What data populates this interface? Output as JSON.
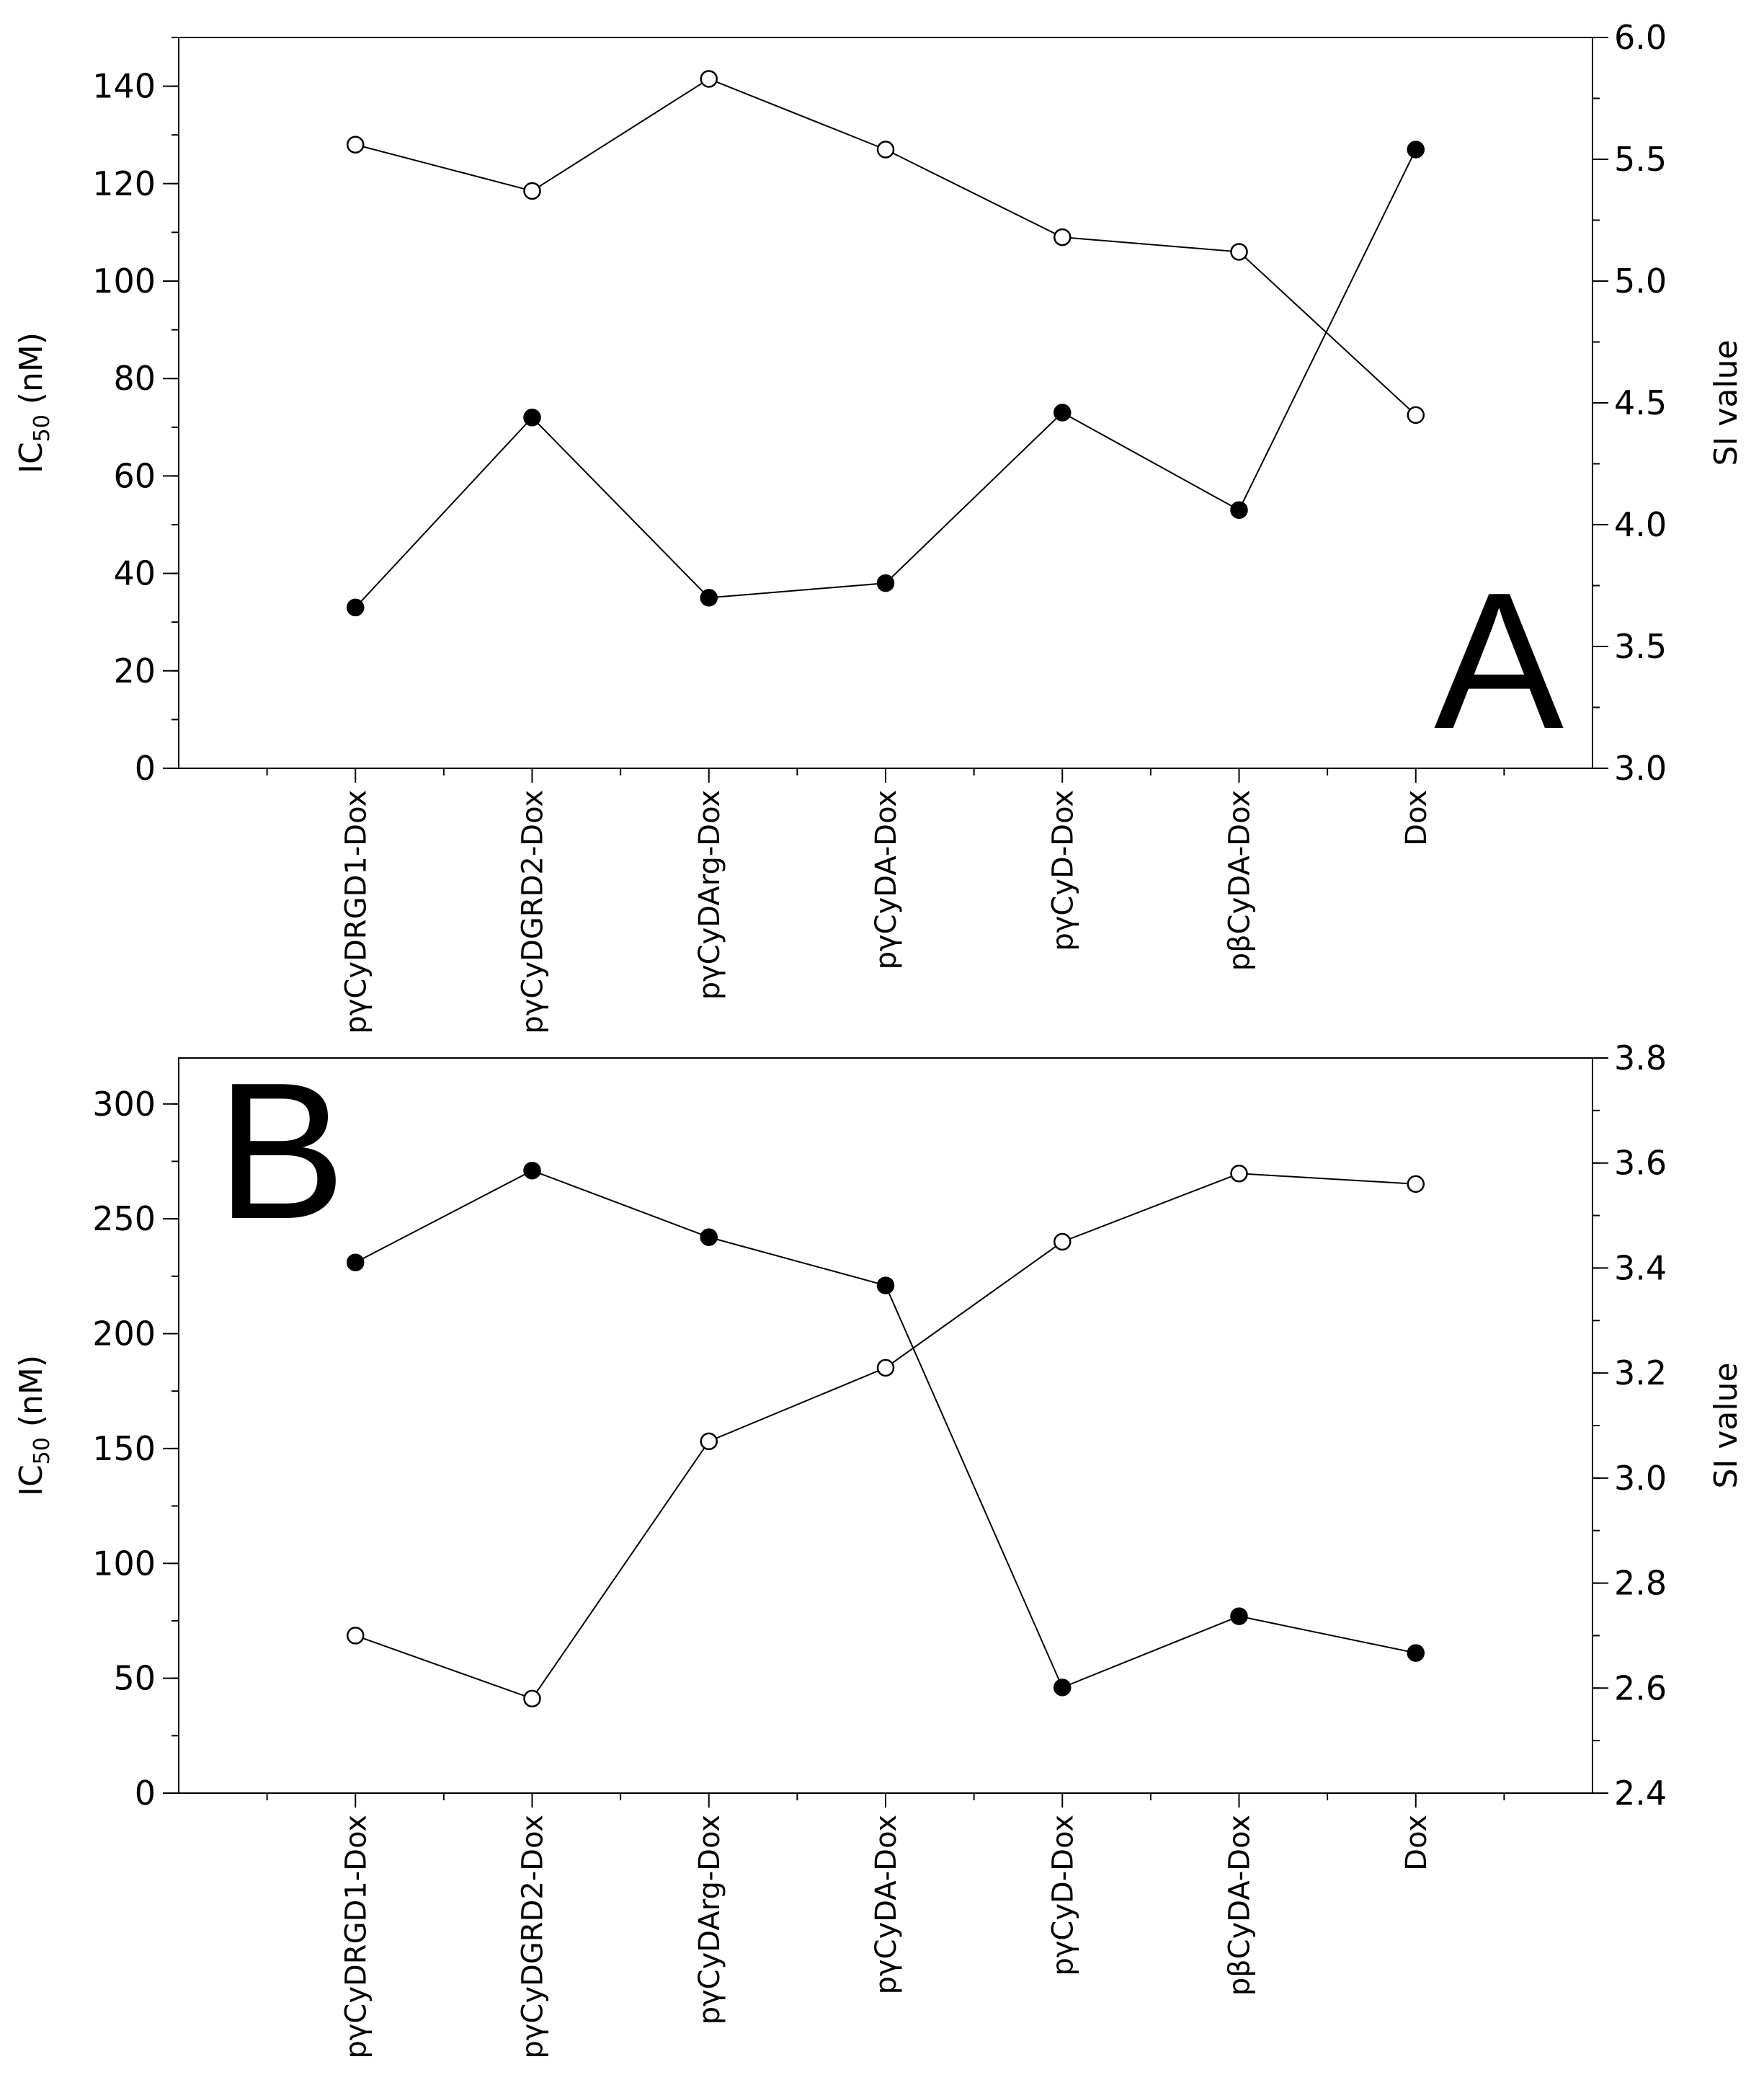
{
  "chart_data": [
    {
      "type": "line",
      "panel_label": "A",
      "categories": [
        "pγCyDRGD1-Dox",
        "pγCyDGRD2-Dox",
        "pγCyDArg-Dox",
        "pγCyDA-Dox",
        "pγCyD-Dox",
        "pβCyDA-Dox",
        "Dox"
      ],
      "y_left": {
        "label": "IC",
        "label_sub": "50",
        "label_unit": " (nM)",
        "ylim": [
          0,
          150
        ],
        "ticks": [
          0,
          20,
          40,
          60,
          80,
          100,
          120,
          140
        ],
        "minor_step": 10
      },
      "y_right": {
        "label": "SI value",
        "ylim": [
          3.0,
          6.0
        ],
        "ticks": [
          "3.0",
          "3.5",
          "4.0",
          "4.5",
          "5.0",
          "5.5",
          "6.0"
        ],
        "minor_step": 0.25
      },
      "series": [
        {
          "name": "IC50 (filled)",
          "axis": "left",
          "marker": "filled",
          "values": [
            33,
            72,
            35,
            38,
            73,
            53,
            127
          ]
        },
        {
          "name": "SI value (open)",
          "axis": "right",
          "marker": "open",
          "values": [
            5.56,
            5.37,
            5.83,
            5.54,
            5.18,
            5.12,
            4.45
          ]
        }
      ]
    },
    {
      "type": "line",
      "panel_label": "B",
      "categories": [
        "pγCyDRGD1-Dox",
        "pγCyDGRD2-Dox",
        "pγCyDArg-Dox",
        "pγCyDA-Dox",
        "pγCyD-Dox",
        "pβCyDA-Dox",
        "Dox"
      ],
      "y_left": {
        "label": "IC",
        "label_sub": "50",
        "label_unit": " (nM)",
        "ylim": [
          0,
          320
        ],
        "ticks": [
          0,
          50,
          100,
          150,
          200,
          250,
          300
        ],
        "minor_step": 25
      },
      "y_right": {
        "label": "SI value",
        "ylim": [
          2.4,
          3.8
        ],
        "ticks": [
          "2.4",
          "2.6",
          "2.8",
          "3.0",
          "3.2",
          "3.4",
          "3.6",
          "3.8"
        ],
        "minor_step": 0.1
      },
      "series": [
        {
          "name": "IC50 (filled)",
          "axis": "left",
          "marker": "filled",
          "values": [
            231,
            271,
            242,
            221,
            46,
            77,
            61
          ]
        },
        {
          "name": "SI value (open)",
          "axis": "right",
          "marker": "open",
          "values": [
            2.7,
            2.58,
            3.07,
            3.21,
            3.45,
            3.58,
            3.56
          ]
        }
      ]
    }
  ]
}
